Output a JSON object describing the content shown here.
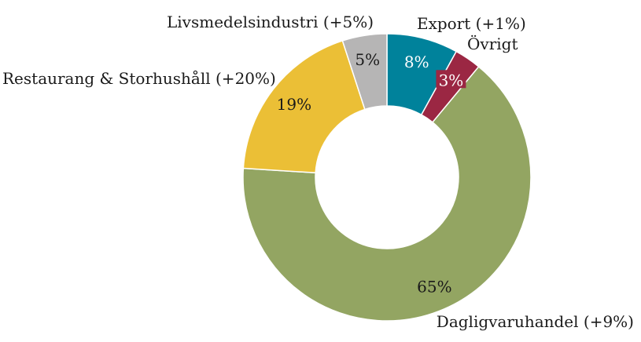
{
  "chart_data": {
    "type": "pie",
    "donut": true,
    "title": "",
    "legend": "none",
    "slices": [
      {
        "key": "export",
        "category": "Export (+1%)",
        "value": 8,
        "value_label": "8%",
        "color": "#00829B",
        "value_label_color": "#ffffff"
      },
      {
        "key": "ovrigt",
        "category": "Övrigt",
        "value": 3,
        "value_label": "3%",
        "color": "#9B2743",
        "value_label_color": "#ffffff"
      },
      {
        "key": "dagligvaruhandel",
        "category": "Dagligvaruhandel (+9%)",
        "value": 65,
        "value_label": "65%",
        "color": "#93A562",
        "value_label_color": "#1a1a1a"
      },
      {
        "key": "restaurang",
        "category": "Restaurang & Storhushåll (+20%)",
        "value": 19,
        "value_label": "19%",
        "color": "#EBBF36",
        "value_label_color": "#1a1a1a"
      },
      {
        "key": "livsmedelsindustri",
        "category": "Livsmedelsindustri (+5%)",
        "value": 5,
        "value_label": "5%",
        "color": "#B6B5B5",
        "value_label_color": "#1a1a1a"
      }
    ]
  }
}
